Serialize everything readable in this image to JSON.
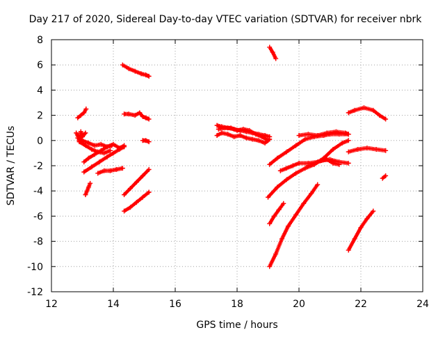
{
  "chart_data": {
    "type": "scatter",
    "title": "Day 217 of 2020, Sidereal Day-to-day VTEC variation (SDTVAR) for receiver nbrk",
    "xlabel": "GPS time / hours",
    "ylabel": "SDTVAR / TECUs",
    "xlim": [
      12,
      24
    ],
    "ylim": [
      -12,
      8
    ],
    "x_ticks": [
      "12",
      "14",
      "16",
      "18",
      "20",
      "22",
      "24"
    ],
    "y_ticks": [
      "8",
      "6",
      "4",
      "2",
      "0",
      "-2",
      "-4",
      "-6",
      "-8",
      "-10",
      "-12"
    ],
    "grid": true,
    "marker": "plus",
    "color": "#ff0000",
    "series": [
      {
        "x": [
          12.85,
          12.95,
          13.05,
          13.12
        ],
        "y": [
          1.8,
          2.0,
          2.2,
          2.5
        ]
      },
      {
        "x": [
          12.8,
          12.85,
          12.9,
          12.95,
          13.0,
          13.1
        ],
        "y": [
          0.6,
          0.4,
          0.0,
          0.7,
          0.3,
          0.6
        ]
      },
      {
        "x": [
          12.85,
          13.0,
          13.2,
          13.4,
          13.6,
          13.8,
          14.0,
          14.2,
          14.35
        ],
        "y": [
          0.2,
          0.0,
          -0.2,
          -0.4,
          -0.3,
          -0.5,
          -0.3,
          -0.6,
          -0.4
        ]
      },
      {
        "x": [
          12.9,
          13.1,
          13.3,
          13.5,
          13.7,
          13.9
        ],
        "y": [
          -0.1,
          -0.4,
          -0.7,
          -0.9,
          -1.0,
          -0.8
        ]
      },
      {
        "x": [
          13.05,
          13.2,
          13.4,
          13.6,
          13.8,
          13.95
        ],
        "y": [
          -1.7,
          -1.4,
          -1.1,
          -0.8,
          -0.5,
          -0.4
        ]
      },
      {
        "x": [
          13.05,
          13.3,
          13.55,
          13.8,
          14.0,
          14.2,
          14.35
        ],
        "y": [
          -2.5,
          -2.1,
          -1.7,
          -1.3,
          -1.0,
          -0.7,
          -0.5
        ]
      },
      {
        "x": [
          13.5,
          13.7,
          13.9,
          14.1,
          14.3
        ],
        "y": [
          -2.6,
          -2.4,
          -2.4,
          -2.3,
          -2.2
        ]
      },
      {
        "x": [
          13.1,
          13.15,
          13.2,
          13.25
        ],
        "y": [
          -4.3,
          -4.0,
          -3.7,
          -3.4
        ]
      },
      {
        "x": [
          14.3,
          14.5,
          14.7,
          14.9,
          15.05,
          15.15
        ],
        "y": [
          6.0,
          5.7,
          5.5,
          5.3,
          5.2,
          5.1
        ]
      },
      {
        "x": [
          14.35,
          14.5,
          14.7,
          14.85,
          14.95,
          15.05,
          15.15
        ],
        "y": [
          2.1,
          2.1,
          2.0,
          2.2,
          1.9,
          1.8,
          1.7
        ]
      },
      {
        "x": [
          14.95,
          15.05,
          15.15
        ],
        "y": [
          0.0,
          0.0,
          -0.1
        ]
      },
      {
        "x": [
          14.35,
          14.55,
          14.75,
          14.95,
          15.15
        ],
        "y": [
          -4.3,
          -3.8,
          -3.3,
          -2.8,
          -2.3
        ]
      },
      {
        "x": [
          14.35,
          14.55,
          14.75,
          14.95,
          15.15
        ],
        "y": [
          -5.6,
          -5.3,
          -4.9,
          -4.5,
          -4.1
        ]
      },
      {
        "x": [
          17.35,
          17.5,
          17.7,
          17.9,
          18.1,
          18.3,
          18.5,
          18.7,
          18.9,
          19.05
        ],
        "y": [
          1.2,
          1.1,
          1.0,
          0.9,
          0.8,
          0.7,
          0.6,
          0.5,
          0.4,
          0.3
        ]
      },
      {
        "x": [
          17.35,
          17.5,
          17.7,
          17.9,
          18.1,
          18.3,
          18.5,
          18.7,
          18.9,
          19.05
        ],
        "y": [
          0.4,
          0.6,
          0.5,
          0.3,
          0.4,
          0.2,
          0.1,
          0.0,
          -0.2,
          0.1
        ]
      },
      {
        "x": [
          17.4,
          17.6,
          17.8,
          18.0,
          18.2,
          18.4,
          18.6,
          18.8,
          19.0
        ],
        "y": [
          0.9,
          1.0,
          1.0,
          0.8,
          0.9,
          0.8,
          0.5,
          0.3,
          0.0
        ]
      },
      {
        "x": [
          19.05,
          19.15,
          19.25
        ],
        "y": [
          7.4,
          7.0,
          6.5
        ]
      },
      {
        "x": [
          19.05,
          19.3,
          19.6,
          19.9,
          20.2,
          20.5,
          20.8,
          21.0,
          21.3,
          21.6
        ],
        "y": [
          -1.9,
          -1.4,
          -0.9,
          -0.4,
          0.1,
          0.3,
          0.4,
          0.5,
          0.5,
          0.5
        ]
      },
      {
        "x": [
          19.4,
          19.6,
          19.8,
          20.0,
          20.3,
          20.6,
          20.9,
          21.1,
          21.3
        ],
        "y": [
          -2.4,
          -2.2,
          -2.0,
          -1.8,
          -1.8,
          -1.7,
          -1.5,
          -1.8,
          -1.9
        ]
      },
      {
        "x": [
          20.0,
          20.3,
          20.6,
          20.9,
          21.2,
          21.5,
          21.6
        ],
        "y": [
          0.4,
          0.5,
          0.4,
          0.6,
          0.7,
          0.6,
          0.5
        ]
      },
      {
        "x": [
          19.0,
          19.3,
          19.6,
          19.9,
          20.2,
          20.5,
          20.8,
          21.1,
          21.4,
          21.6
        ],
        "y": [
          -4.5,
          -3.7,
          -3.1,
          -2.6,
          -2.2,
          -1.9,
          -1.4,
          -0.7,
          -0.2,
          0.0
        ]
      },
      {
        "x": [
          20.3,
          20.7,
          21.0,
          21.3,
          21.6
        ],
        "y": [
          -2.0,
          -1.6,
          -1.5,
          -1.7,
          -1.8
        ]
      },
      {
        "x": [
          19.05,
          19.2,
          19.35,
          19.5
        ],
        "y": [
          -6.6,
          -6.0,
          -5.5,
          -5.0
        ]
      },
      {
        "x": [
          19.05,
          19.25,
          19.45,
          19.65,
          19.9,
          20.15,
          20.4,
          20.6
        ],
        "y": [
          -10.0,
          -9.0,
          -7.8,
          -6.8,
          -5.9,
          -5.0,
          -4.2,
          -3.5
        ]
      },
      {
        "x": [
          21.6,
          21.9,
          22.2,
          22.5,
          22.8
        ],
        "y": [
          -0.9,
          -0.7,
          -0.6,
          -0.7,
          -0.8
        ]
      },
      {
        "x": [
          21.6,
          21.8,
          22.1,
          22.4,
          22.6,
          22.8
        ],
        "y": [
          2.2,
          2.4,
          2.6,
          2.4,
          2.0,
          1.7
        ]
      },
      {
        "x": [
          22.7,
          22.8
        ],
        "y": [
          -3.0,
          -2.8
        ]
      },
      {
        "x": [
          21.6,
          21.8,
          22.0,
          22.2,
          22.4
        ],
        "y": [
          -8.7,
          -7.8,
          -6.9,
          -6.2,
          -5.6
        ]
      }
    ]
  }
}
